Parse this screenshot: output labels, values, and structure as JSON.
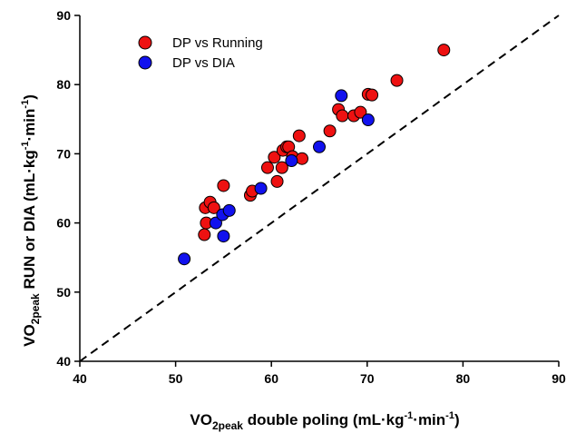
{
  "chart_data": {
    "type": "scatter",
    "xlabel": {
      "main": "VO",
      "sub": "2peak",
      "rest": " double poling (mL·kg",
      "sup": "-1",
      "mid": "·min",
      "sup2": "-1",
      "end": ")"
    },
    "ylabel": {
      "main": "VO",
      "sub": "2peak",
      "rest": " RUN or DIA (mL·kg",
      "sup": "-1",
      "mid": "·min",
      "sup2": "-1",
      "end": ")"
    },
    "xlim": [
      40,
      90
    ],
    "ylim": [
      40,
      90
    ],
    "xticks": [
      "40",
      "50",
      "60",
      "70",
      "80",
      "90"
    ],
    "yticks": [
      "40",
      "50",
      "60",
      "70",
      "80",
      "90"
    ],
    "grid": false,
    "identity_line": true,
    "legend_position": "top-left",
    "series": [
      {
        "name": "DP vs Running",
        "color": "#ee1111",
        "points": [
          [
            53.0,
            58.3
          ],
          [
            53.2,
            60.0
          ],
          [
            53.1,
            62.2
          ],
          [
            53.6,
            63.0
          ],
          [
            54.0,
            62.2
          ],
          [
            55.0,
            65.4
          ],
          [
            57.8,
            64.0
          ],
          [
            58.0,
            64.6
          ],
          [
            59.6,
            68.0
          ],
          [
            60.3,
            69.5
          ],
          [
            60.6,
            66.0
          ],
          [
            61.1,
            68.0
          ],
          [
            61.2,
            70.5
          ],
          [
            61.6,
            71.0
          ],
          [
            61.8,
            71.0
          ],
          [
            62.2,
            69.6
          ],
          [
            62.9,
            72.6
          ],
          [
            63.2,
            69.3
          ],
          [
            66.1,
            73.3
          ],
          [
            67.0,
            76.4
          ],
          [
            67.4,
            75.5
          ],
          [
            68.6,
            75.5
          ],
          [
            69.3,
            76.0
          ],
          [
            70.1,
            78.6
          ],
          [
            70.5,
            78.5
          ],
          [
            73.1,
            80.6
          ],
          [
            78.0,
            85.0
          ]
        ]
      },
      {
        "name": "DP vs DIA",
        "color": "#1111ee",
        "points": [
          [
            50.9,
            54.8
          ],
          [
            54.2,
            60.0
          ],
          [
            54.9,
            61.2
          ],
          [
            55.6,
            61.8
          ],
          [
            55.0,
            58.1
          ],
          [
            58.9,
            65.0
          ],
          [
            62.1,
            69.0
          ],
          [
            65.0,
            71.0
          ],
          [
            67.3,
            78.4
          ],
          [
            70.1,
            74.9
          ]
        ]
      }
    ]
  }
}
